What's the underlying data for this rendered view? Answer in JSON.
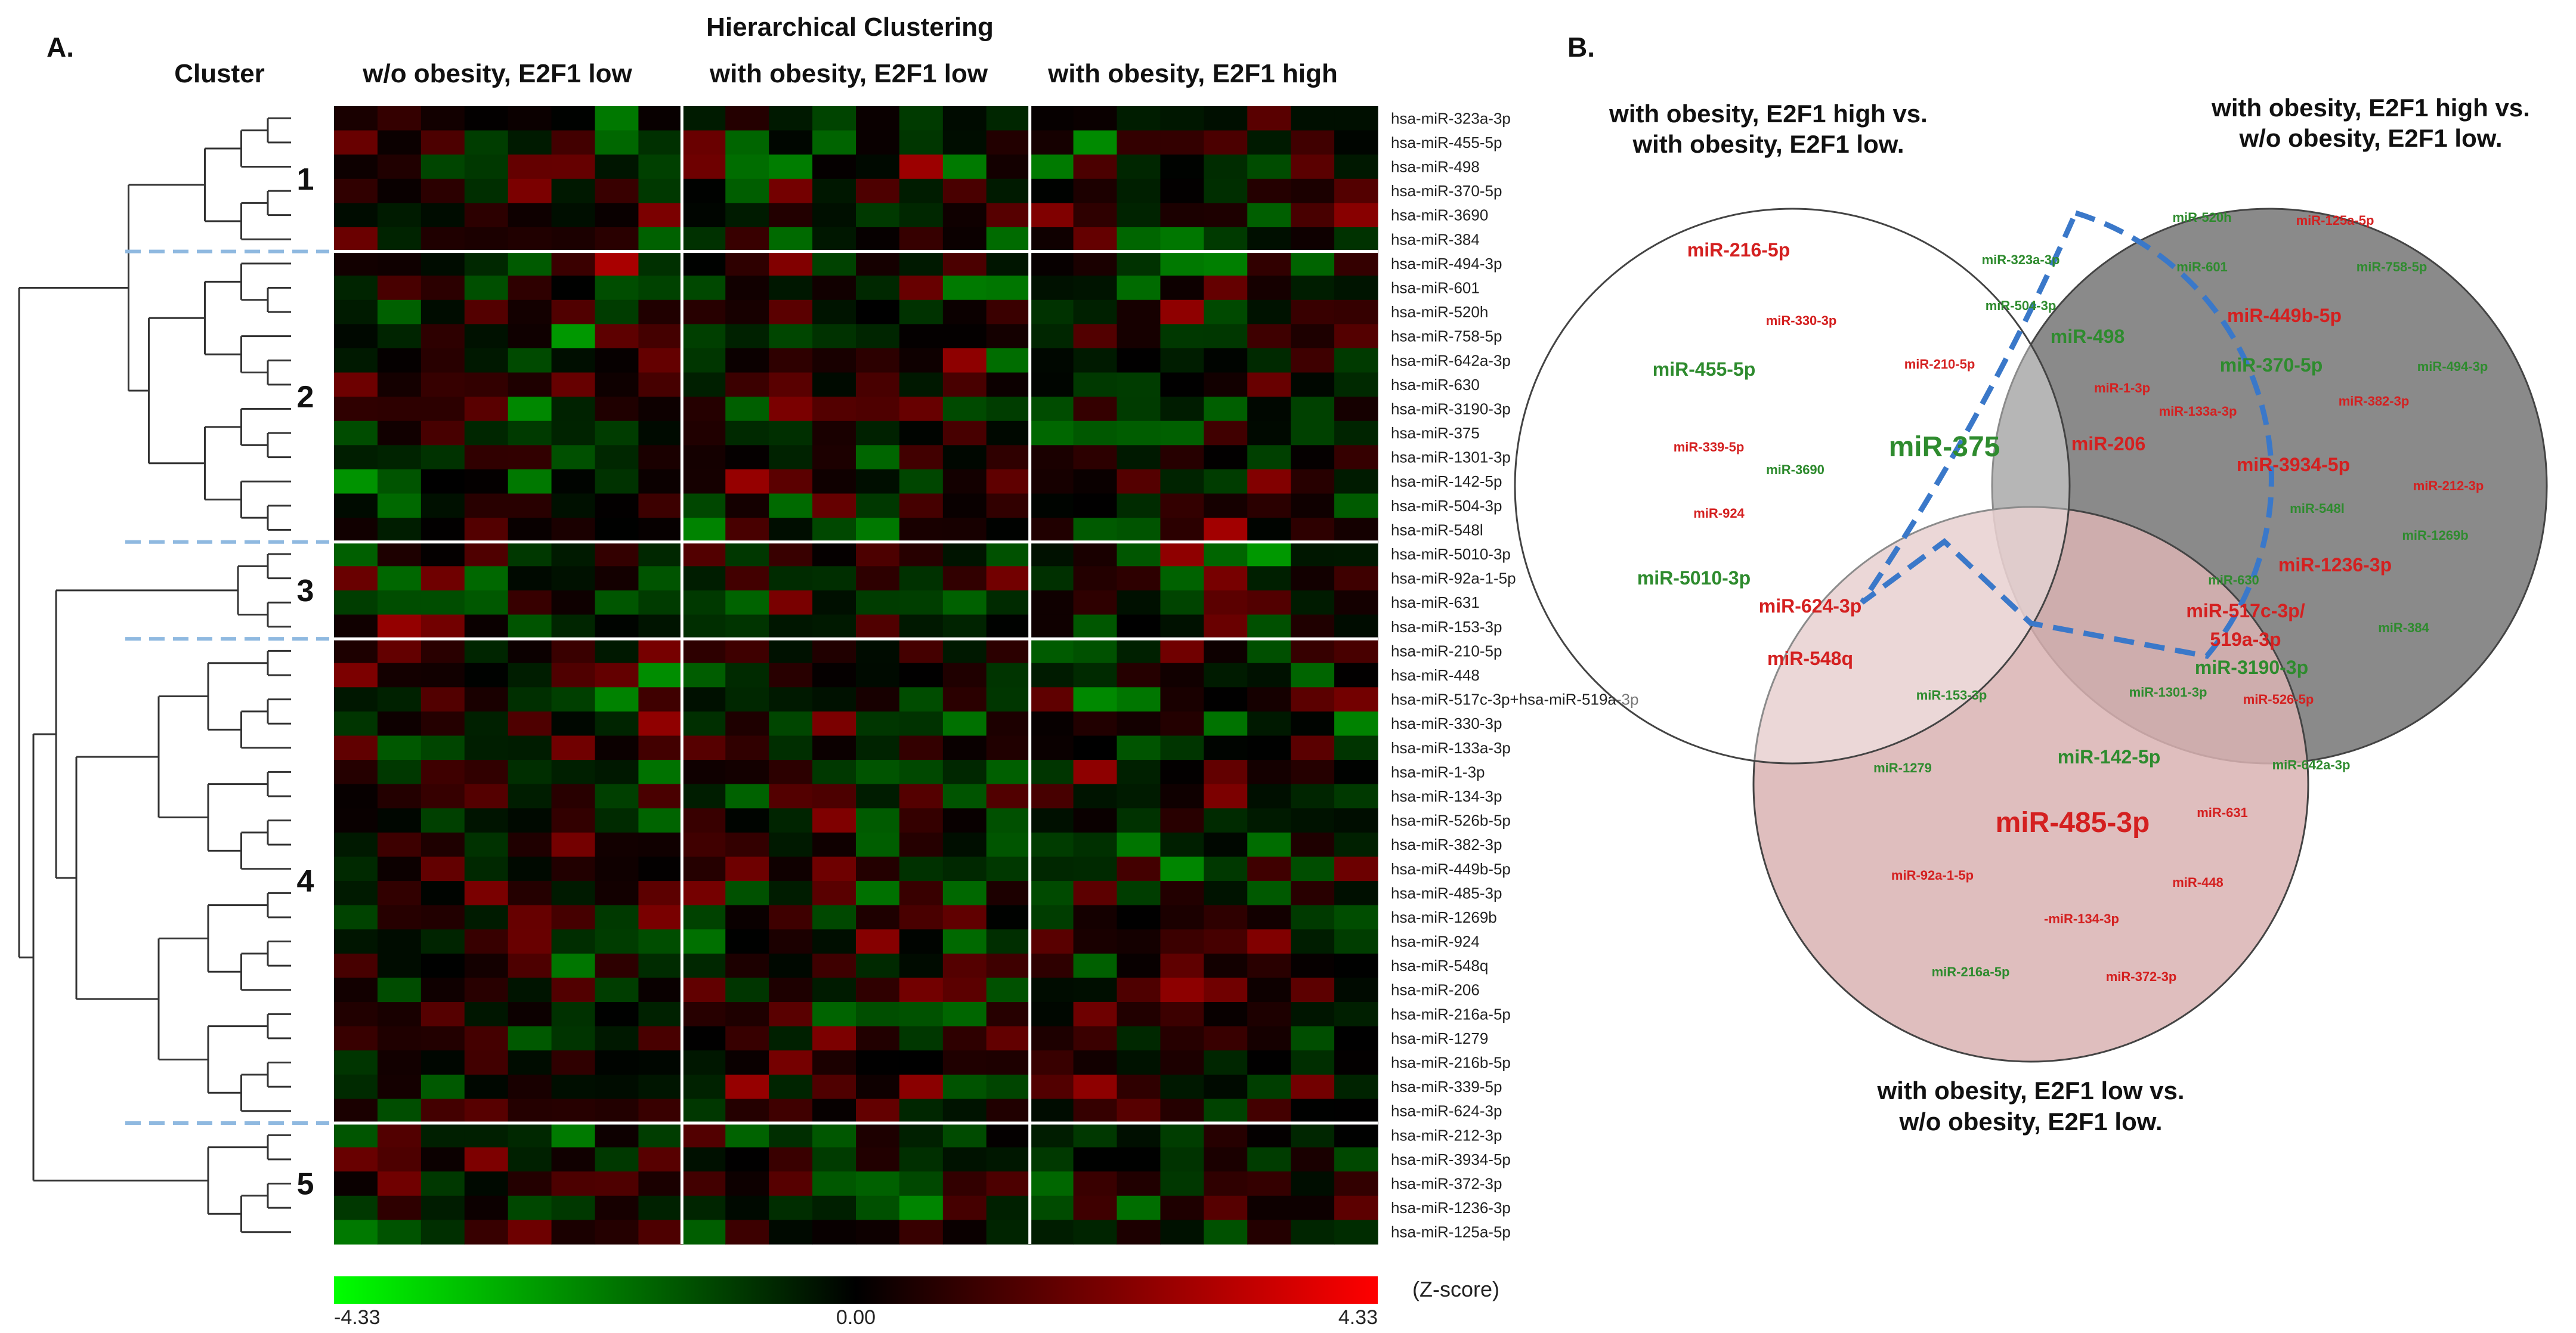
{
  "panel_a": {
    "label": "A.",
    "title": "Hierarchical Clustering",
    "cluster_header": "Cluster",
    "groups": [
      "w/o obesity, E2F1 low",
      "with obesity, E2F1 low",
      "with obesity, E2F1 high"
    ],
    "cluster_numbers": [
      "1",
      "2",
      "3",
      "4",
      "5"
    ],
    "cluster_sizes": [
      6,
      12,
      4,
      20,
      5
    ],
    "mirnas": [
      "hsa-miR-323a-3p",
      "hsa-miR-455-5p",
      "hsa-miR-498",
      "hsa-miR-370-5p",
      "hsa-miR-3690",
      "hsa-miR-384",
      "hsa-miR-494-3p",
      "hsa-miR-601",
      "hsa-miR-520h",
      "hsa-miR-758-5p",
      "hsa-miR-642a-3p",
      "hsa-miR-630",
      "hsa-miR-3190-3p",
      "hsa-miR-375",
      "hsa-miR-1301-3p",
      "hsa-miR-142-5p",
      "hsa-miR-504-3p",
      "hsa-miR-548l",
      "hsa-miR-5010-3p",
      "hsa-miR-92a-1-5p",
      "hsa-miR-631",
      "hsa-miR-153-3p",
      "hsa-miR-210-5p",
      "hsa-miR-448",
      "hsa-miR-517c-3p+hsa-miR-519a-3p",
      "hsa-miR-330-3p",
      "hsa-miR-133a-3p",
      "hsa-miR-1-3p",
      "hsa-miR-134-3p",
      "hsa-miR-526b-5p",
      "hsa-miR-382-3p",
      "hsa-miR-449b-5p",
      "hsa-miR-485-3p",
      "hsa-miR-1269b",
      "hsa-miR-924",
      "hsa-miR-548q",
      "hsa-miR-206",
      "hsa-miR-216a-5p",
      "hsa-miR-1279",
      "hsa-miR-216b-5p",
      "hsa-miR-339-5p",
      "hsa-miR-624-3p",
      "hsa-miR-212-3p",
      "hsa-miR-3934-5p",
      "hsa-miR-372-3p",
      "hsa-miR-1236-3p",
      "hsa-miR-125a-5p"
    ]
  },
  "chart_data": {
    "type": "heatmap",
    "title": "Hierarchical Clustering",
    "columns_per_group": 8,
    "value_range": [
      -4.33,
      4.33
    ],
    "note": "Per-sample z-score values are not individually readable; cell intensities approximated from the color pattern."
  },
  "colorbar": {
    "min_label": "-4.33",
    "mid_label": "0.00",
    "max_label": "4.33",
    "unit_label": "(Z-score)",
    "low_color": "#00ff00",
    "mid_color": "#000000",
    "high_color": "#ff0000"
  },
  "panel_b": {
    "label": "B.",
    "set_titles": {
      "left_line1": "with obesity, E2F1 high vs.",
      "left_line2": "with obesity, E2F1 low.",
      "right_line1": "with obesity, E2F1 high vs.",
      "right_line2": "w/o obesity, E2F1 low.",
      "bottom_line1": "with obesity, E2F1 low vs.",
      "bottom_line2": "w/o obesity, E2F1 low."
    },
    "colors": {
      "down": "#2e8b2e",
      "up": "#d42020",
      "dashed": "#3a78c9"
    },
    "mirnas": [
      {
        "name": "miR-216-5p",
        "dir": "up",
        "size": "m"
      },
      {
        "name": "miR-330-3p",
        "dir": "up",
        "size": "s"
      },
      {
        "name": "miR-455-5p",
        "dir": "down",
        "size": "m"
      },
      {
        "name": "miR-339-5p",
        "dir": "up",
        "size": "s"
      },
      {
        "name": "miR-3690",
        "dir": "down",
        "size": "s"
      },
      {
        "name": "miR-924",
        "dir": "up",
        "size": "s"
      },
      {
        "name": "miR-5010-3p",
        "dir": "down",
        "size": "m"
      },
      {
        "name": "miR-323a-3p",
        "dir": "down",
        "size": "s"
      },
      {
        "name": "miR-504-3p",
        "dir": "down",
        "size": "s"
      },
      {
        "name": "miR-210-5p",
        "dir": "up",
        "size": "s"
      },
      {
        "name": "miR-498",
        "dir": "down",
        "size": "m"
      },
      {
        "name": "miR-1-3p",
        "dir": "up",
        "size": "s"
      },
      {
        "name": "miR-375",
        "dir": "down",
        "size": "l"
      },
      {
        "name": "miR-206",
        "dir": "up",
        "size": "m"
      },
      {
        "name": "miR-520h",
        "dir": "down",
        "size": "s"
      },
      {
        "name": "miR-125a-5p",
        "dir": "up",
        "size": "s"
      },
      {
        "name": "miR-601",
        "dir": "down",
        "size": "s"
      },
      {
        "name": "miR-758-5p",
        "dir": "down",
        "size": "s"
      },
      {
        "name": "miR-449b-5p",
        "dir": "up",
        "size": "m"
      },
      {
        "name": "miR-370-5p",
        "dir": "down",
        "size": "m"
      },
      {
        "name": "miR-494-3p",
        "dir": "down",
        "size": "s"
      },
      {
        "name": "miR-133a-3p",
        "dir": "up",
        "size": "s"
      },
      {
        "name": "miR-382-3p",
        "dir": "up",
        "size": "s"
      },
      {
        "name": "miR-3934-5p",
        "dir": "up",
        "size": "m"
      },
      {
        "name": "miR-212-3p",
        "dir": "up",
        "size": "s"
      },
      {
        "name": "miR-548l",
        "dir": "down",
        "size": "s"
      },
      {
        "name": "miR-1269b",
        "dir": "down",
        "size": "s"
      },
      {
        "name": "miR-1236-3p",
        "dir": "up",
        "size": "m"
      },
      {
        "name": "miR-384",
        "dir": "down",
        "size": "s"
      },
      {
        "name": "miR-624-3p",
        "dir": "up",
        "size": "m"
      },
      {
        "name": "miR-548q",
        "dir": "up",
        "size": "m"
      },
      {
        "name": "miR-153-3p",
        "dir": "down",
        "size": "s"
      },
      {
        "name": "miR-630",
        "dir": "down",
        "size": "s"
      },
      {
        "name": "miR-517c-3p/",
        "dir": "up",
        "size": "m"
      },
      {
        "name": "519a-3p",
        "dir": "up",
        "size": "m"
      },
      {
        "name": "miR-3190-3p",
        "dir": "down",
        "size": "m"
      },
      {
        "name": "miR-1301-3p",
        "dir": "down",
        "size": "s"
      },
      {
        "name": "miR-526-5p",
        "dir": "up",
        "size": "s"
      },
      {
        "name": "miR-1279",
        "dir": "down",
        "size": "s"
      },
      {
        "name": "miR-142-5p",
        "dir": "down",
        "size": "m"
      },
      {
        "name": "miR-642a-3p",
        "dir": "down",
        "size": "s"
      },
      {
        "name": "miR-631",
        "dir": "up",
        "size": "s"
      },
      {
        "name": "miR-485-3p",
        "dir": "up",
        "size": "l"
      },
      {
        "name": "miR-92a-1-5p",
        "dir": "up",
        "size": "s"
      },
      {
        "name": "miR-448",
        "dir": "up",
        "size": "s"
      },
      {
        "name": "-miR-134-3p",
        "dir": "up",
        "size": "s"
      },
      {
        "name": "miR-216a-5p",
        "dir": "down",
        "size": "s"
      },
      {
        "name": "miR-372-3p",
        "dir": "up",
        "size": "s"
      }
    ]
  }
}
